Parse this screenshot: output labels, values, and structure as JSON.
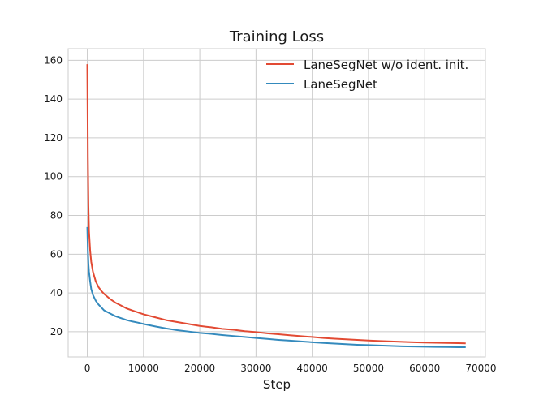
{
  "chart_data": {
    "type": "line",
    "title": "Training Loss",
    "xlabel": "Step",
    "ylabel": "",
    "xlim": [
      -3400,
      70800
    ],
    "ylim": [
      7,
      166
    ],
    "xticks": [
      0,
      10000,
      20000,
      30000,
      40000,
      50000,
      60000,
      70000
    ],
    "xtick_labels": [
      "0",
      "10000",
      "20000",
      "30000",
      "40000",
      "50000",
      "60000",
      "70000"
    ],
    "yticks": [
      20,
      40,
      60,
      80,
      100,
      120,
      140,
      160
    ],
    "ytick_labels": [
      "20",
      "40",
      "60",
      "80",
      "100",
      "120",
      "140",
      "160"
    ],
    "grid": true,
    "legend_position": "top-right",
    "series": [
      {
        "name": "LaneSegNet w/o ident. init.",
        "color": "#e24a33",
        "x": [
          0,
          100,
          200,
          300,
          500,
          700,
          1000,
          1500,
          2000,
          2500,
          3000,
          4000,
          5000,
          6000,
          7000,
          8000,
          9000,
          10000,
          12000,
          14000,
          16000,
          18000,
          20000,
          22000,
          24000,
          26000,
          28000,
          30000,
          32000,
          34000,
          36000,
          38000,
          40000,
          42000,
          44000,
          46000,
          48000,
          50000,
          52000,
          54000,
          56000,
          58000,
          60000,
          62000,
          64000,
          66000,
          67300
        ],
        "y": [
          158,
          110,
          85,
          72,
          62,
          56,
          51,
          46,
          43,
          41,
          39.5,
          37,
          35,
          33.5,
          32,
          31,
          30,
          29,
          27.5,
          26,
          25,
          24,
          23,
          22.3,
          21.5,
          21,
          20.3,
          19.8,
          19.2,
          18.7,
          18.2,
          17.7,
          17.3,
          16.8,
          16.4,
          16.1,
          15.8,
          15.5,
          15.2,
          15,
          14.8,
          14.6,
          14.4,
          14.3,
          14.2,
          14.1,
          14
        ]
      },
      {
        "name": "LaneSegNet",
        "color": "#348abd",
        "x": [
          0,
          100,
          200,
          300,
          500,
          700,
          1000,
          1500,
          2000,
          2500,
          3000,
          4000,
          5000,
          6000,
          7000,
          8000,
          9000,
          10000,
          12000,
          14000,
          16000,
          18000,
          20000,
          22000,
          24000,
          26000,
          28000,
          30000,
          32000,
          34000,
          36000,
          38000,
          40000,
          42000,
          44000,
          46000,
          48000,
          50000,
          52000,
          54000,
          56000,
          58000,
          60000,
          62000,
          64000,
          66000,
          67300
        ],
        "y": [
          74,
          62,
          55,
          51,
          46,
          42,
          39,
          36,
          34,
          32.5,
          31,
          29.5,
          28,
          27,
          26,
          25.3,
          24.7,
          24,
          22.8,
          21.7,
          20.8,
          20.1,
          19.4,
          18.9,
          18.3,
          17.8,
          17.3,
          16.8,
          16.3,
          15.8,
          15.4,
          15,
          14.6,
          14.2,
          13.9,
          13.6,
          13.3,
          13.1,
          12.9,
          12.7,
          12.5,
          12.4,
          12.3,
          12.2,
          12.1,
          12,
          12
        ]
      }
    ]
  }
}
